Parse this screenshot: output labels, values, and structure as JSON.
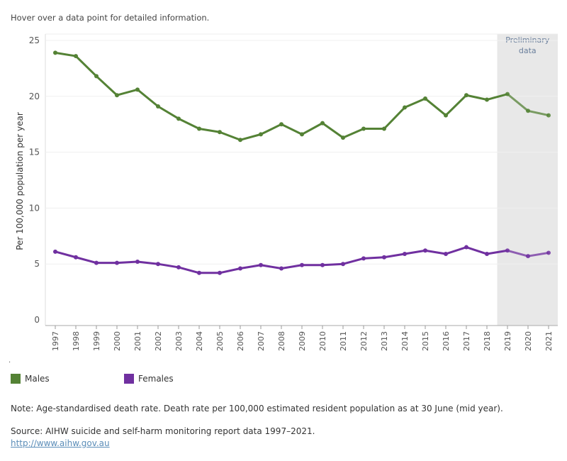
{
  "hint": "Hover over a data point for detailed information.",
  "dot": ".",
  "note": "Note: Age-standardised death rate. Death rate per 100,000 estimated resident population as at 30 June (mid year).",
  "source": "Source: AIHW suicide and self-harm monitoring report data 1997–2021.",
  "source_link": "http://www.aihw.gov.au",
  "chart_data": {
    "type": "line",
    "ylabel": "Per 100,000 population per year",
    "ylim": [
      0,
      25
    ],
    "yticks": [
      0,
      5,
      10,
      15,
      20,
      25
    ],
    "x": [
      "1997",
      "1998",
      "1999",
      "2000",
      "2001",
      "2002",
      "2003",
      "2004",
      "2005",
      "2006",
      "2007",
      "2008",
      "2009",
      "2010",
      "2011",
      "2012",
      "2013",
      "2014",
      "2015",
      "2016",
      "2017",
      "2018",
      "2019",
      "2020",
      "2021"
    ],
    "series": [
      {
        "name": "Males",
        "color": "#548235",
        "values": [
          23.9,
          23.6,
          21.8,
          20.1,
          20.6,
          19.1,
          18.0,
          17.1,
          16.8,
          16.1,
          16.6,
          17.5,
          16.6,
          17.6,
          16.3,
          17.1,
          17.1,
          19.0,
          19.8,
          18.3,
          20.1,
          19.7,
          20.2,
          18.7,
          18.3
        ]
      },
      {
        "name": "Females",
        "color": "#7030a0",
        "values": [
          6.1,
          5.6,
          5.1,
          5.1,
          5.2,
          5.0,
          4.7,
          4.2,
          4.2,
          4.6,
          4.9,
          4.6,
          4.9,
          4.9,
          5.0,
          5.5,
          5.6,
          5.9,
          6.2,
          5.9,
          6.5,
          5.9,
          6.2,
          5.7,
          6.0
        ]
      }
    ],
    "shaded_region": {
      "from": "2019",
      "to": "2021",
      "label_line1": "Preliminary",
      "label_line2": "data",
      "color": "#e8e8e8"
    },
    "grid": true,
    "legend": "bottom-left"
  }
}
